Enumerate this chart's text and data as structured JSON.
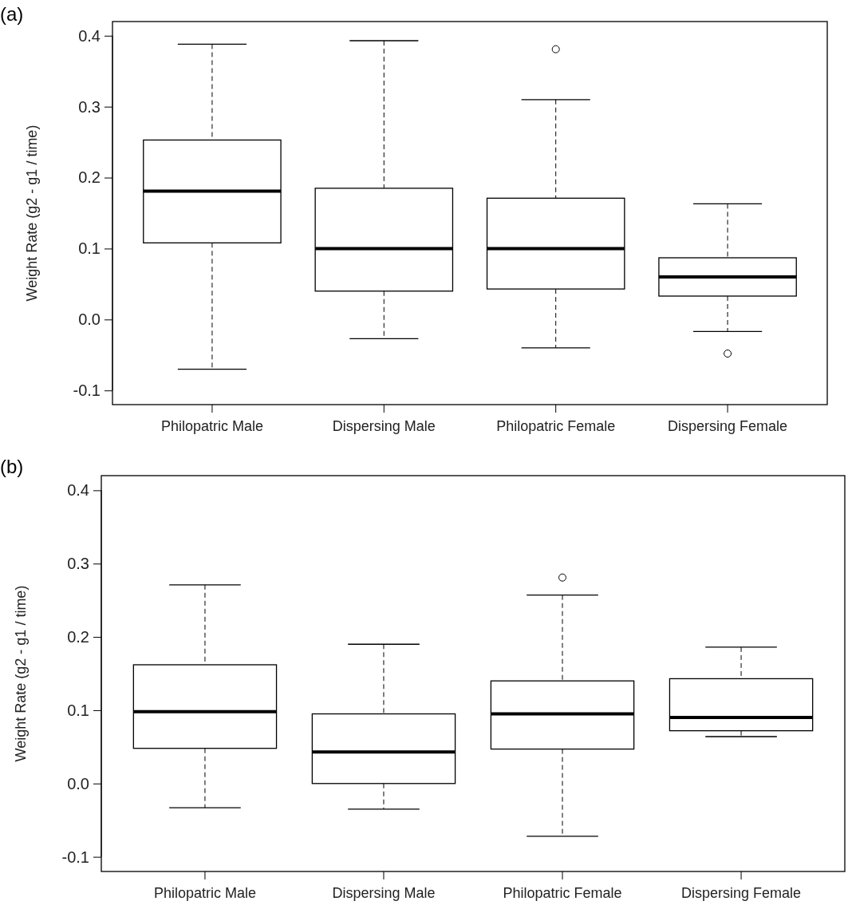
{
  "chart_data": [
    {
      "type": "box",
      "title": "(a)",
      "ylabel": "Weight Rate (g2 - g1 / time)",
      "categories": [
        "Philopatric Male",
        "Dispersing Male",
        "Philopatric Female",
        "Dispersing Female"
      ],
      "boxes": [
        {
          "low": -0.07,
          "q1": 0.108,
          "median": 0.181,
          "q3": 0.253,
          "high": 0.388
        },
        {
          "low": -0.027,
          "q1": 0.04,
          "median": 0.1,
          "q3": 0.185,
          "high": 0.393
        },
        {
          "low": -0.04,
          "q1": 0.043,
          "median": 0.1,
          "q3": 0.171,
          "high": 0.31,
          "outliers": [
            0.381
          ]
        },
        {
          "low": -0.017,
          "q1": 0.033,
          "median": 0.06,
          "q3": 0.087,
          "high": 0.163,
          "outliers": [
            -0.048
          ]
        }
      ],
      "ylim": [
        -0.12,
        0.42
      ],
      "yticks": [
        -0.1,
        {
          "value": 0,
          "label": "0.0"
        },
        0.1,
        0.2,
        0.3,
        0.4
      ]
    },
    {
      "type": "box",
      "title": "(b)",
      "ylabel": "Weight Rate (g2 - g1 / time)",
      "categories": [
        "Philopatric Male",
        "Dispersing Male",
        "Philopatric Female",
        "Dispersing Female"
      ],
      "boxes": [
        {
          "low": -0.033,
          "q1": 0.048,
          "median": 0.098,
          "q3": 0.162,
          "high": 0.271
        },
        {
          "low": -0.035,
          "q1": 0,
          "median": 0.043,
          "q3": 0.095,
          "high": 0.19
        },
        {
          "low": -0.072,
          "q1": 0.047,
          "median": 0.095,
          "q3": 0.14,
          "high": 0.257,
          "outliers": [
            0.281
          ]
        },
        {
          "low": 0.064,
          "q1": 0.072,
          "median": 0.09,
          "q3": 0.143,
          "high": 0.186
        }
      ],
      "ylim": [
        -0.12,
        0.42
      ],
      "yticks": [
        -0.1,
        {
          "value": 0,
          "label": "0.0"
        },
        0.1,
        0.2,
        0.3,
        0.4
      ]
    }
  ]
}
